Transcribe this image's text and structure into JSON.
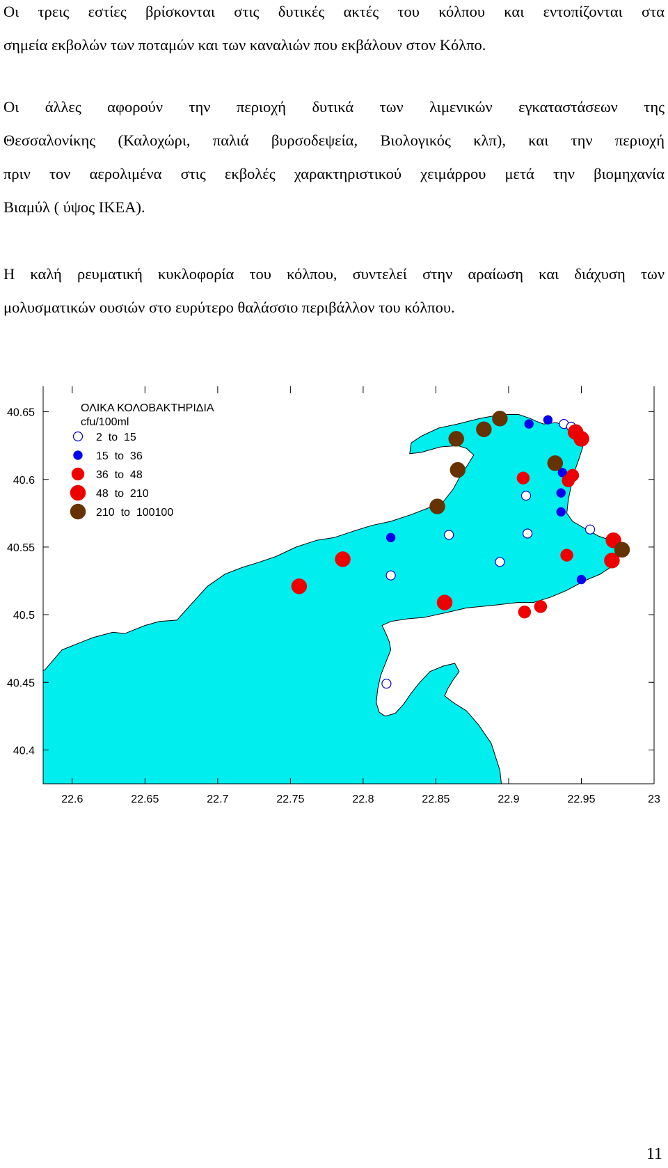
{
  "paragraphs": [
    {
      "lines": [
        "Οι τρεις εστίες βρίσκονται στις δυτικές ακτές του κόλπου και εντοπίζονται στα",
        "σημεία εκβολών των ποταμών και των καναλιών που εκβάλουν στον Κόλπο."
      ]
    },
    {
      "lines": [
        "Οι άλλες αφορούν την περιοχή δυτικά των λιμενικών εγκαταστάσεων της",
        "Θεσσαλονίκης (Καλοχώρι, παλιά βυρσοδεψεία, Βιολογικός κλπ), και την περιοχή",
        "πριν τον αερολιμένα στις εκβολές χαρακτηριστικού χειμάρρου μετά την βιομηχανία",
        "Βιαμύλ ( ύψος ΙΚΕΑ)."
      ]
    },
    {
      "lines": [
        "Η καλή ρευματική κυκλοφορία του κόλπου, συντελεί στην αραίωση και διάχυση των",
        "μολυσματικών ουσιών στο ευρύτερο θαλάσσιο περιβάλλον του κόλπου."
      ]
    }
  ],
  "chart_data": {
    "type": "scatter",
    "legend": {
      "title_line1": "ΟΛΙΚΑ ΚΟΛΟΒΑΚΤΗΡΙΔΙΑ",
      "title_line2": "cfu/100ml",
      "placement": "top-left",
      "classes": [
        {
          "label": "2  to  15",
          "color": "#ffffff",
          "stroke": "#0000cc",
          "size": "small"
        },
        {
          "label": "15  to  36",
          "color": "#0000ee",
          "stroke": "#0000ee",
          "size": "small"
        },
        {
          "label": "36  to  48",
          "color": "#ee0000",
          "stroke": "#ee0000",
          "size": "medium"
        },
        {
          "label": "48  to  210",
          "color": "#ee0000",
          "stroke": "#ee0000",
          "size": "large"
        },
        {
          "label": "210  to  100100",
          "color": "#663300",
          "stroke": "#663300",
          "size": "large"
        }
      ]
    },
    "x_ticks": [
      "22.6",
      "22.65",
      "22.7",
      "22.75",
      "22.8",
      "22.85",
      "22.9",
      "22.95",
      "23"
    ],
    "y_ticks": [
      "40.65",
      "40.6",
      "40.55",
      "40.5",
      "40.45",
      "40.4"
    ],
    "xlim": [
      22.58,
      23.0
    ],
    "ylim": [
      40.375,
      40.675
    ],
    "sea_color": "#00eeee",
    "coastline": [
      [
        22.581,
        40.459
      ],
      [
        22.593,
        40.474
      ],
      [
        22.614,
        40.483
      ],
      [
        22.628,
        40.487
      ],
      [
        22.636,
        40.486
      ],
      [
        22.65,
        40.492
      ],
      [
        22.66,
        40.495
      ],
      [
        22.672,
        40.496
      ],
      [
        22.682,
        40.508
      ],
      [
        22.693,
        40.521
      ],
      [
        22.705,
        40.53
      ],
      [
        22.717,
        40.535
      ],
      [
        22.729,
        40.539
      ],
      [
        22.74,
        40.543
      ],
      [
        22.754,
        40.55
      ],
      [
        22.768,
        40.555
      ],
      [
        22.78,
        40.557
      ],
      [
        22.794,
        40.562
      ],
      [
        22.806,
        40.566
      ],
      [
        22.819,
        40.569
      ],
      [
        22.833,
        40.574
      ],
      [
        22.845,
        40.579
      ],
      [
        22.854,
        40.582
      ],
      [
        22.862,
        40.593
      ],
      [
        22.866,
        40.601
      ],
      [
        22.872,
        40.611
      ],
      [
        22.876,
        40.618
      ],
      [
        22.871,
        40.623
      ],
      [
        22.865,
        40.625
      ],
      [
        22.853,
        40.624
      ],
      [
        22.84,
        40.62
      ],
      [
        22.832,
        40.619
      ],
      [
        22.833,
        40.627
      ],
      [
        22.84,
        40.632
      ],
      [
        22.852,
        40.638
      ],
      [
        22.865,
        40.641
      ],
      [
        22.88,
        40.645
      ],
      [
        22.895,
        40.648
      ],
      [
        22.907,
        40.648
      ],
      [
        22.915,
        40.645
      ],
      [
        22.919,
        40.643
      ],
      [
        22.924,
        40.641
      ],
      [
        22.933,
        40.642
      ],
      [
        22.943,
        40.637
      ],
      [
        22.95,
        40.632
      ],
      [
        22.951,
        40.624
      ],
      [
        22.948,
        40.614
      ],
      [
        22.945,
        40.605
      ],
      [
        22.943,
        40.595
      ],
      [
        22.941,
        40.585
      ],
      [
        22.94,
        40.575
      ],
      [
        22.944,
        40.569
      ],
      [
        22.952,
        40.564
      ],
      [
        22.962,
        40.558
      ],
      [
        22.973,
        40.554
      ],
      [
        22.978,
        40.55
      ],
      [
        22.976,
        40.543
      ],
      [
        22.97,
        40.535
      ],
      [
        22.963,
        40.53
      ],
      [
        22.952,
        40.525
      ],
      [
        22.94,
        40.518
      ],
      [
        22.929,
        40.513
      ],
      [
        22.917,
        40.509
      ],
      [
        22.906,
        40.509
      ],
      [
        22.89,
        40.507
      ],
      [
        22.871,
        40.505
      ],
      [
        22.855,
        40.501
      ],
      [
        22.842,
        40.498
      ],
      [
        22.831,
        40.497
      ],
      [
        22.819,
        40.495
      ],
      [
        22.813,
        40.492
      ],
      [
        22.816,
        40.485
      ],
      [
        22.818,
        40.48
      ],
      [
        22.819,
        40.474
      ],
      [
        22.816,
        40.466
      ],
      [
        22.812,
        40.455
      ],
      [
        22.81,
        40.445
      ],
      [
        22.809,
        40.435
      ],
      [
        22.811,
        40.428
      ],
      [
        22.815,
        40.425
      ],
      [
        22.822,
        40.427
      ],
      [
        22.828,
        40.434
      ],
      [
        22.833,
        40.442
      ],
      [
        22.839,
        40.45
      ],
      [
        22.846,
        40.458
      ],
      [
        22.855,
        40.462
      ],
      [
        22.863,
        40.464
      ],
      [
        22.866,
        40.458
      ],
      [
        22.862,
        40.452
      ],
      [
        22.858,
        40.445
      ],
      [
        22.856,
        40.44
      ],
      [
        22.862,
        40.435
      ],
      [
        22.871,
        40.429
      ],
      [
        22.879,
        40.419
      ],
      [
        22.888,
        40.405
      ],
      [
        22.894,
        40.385
      ],
      [
        22.895,
        40.375
      ],
      [
        22.58,
        40.375
      ],
      [
        22.58,
        40.459
      ]
    ],
    "points": [
      {
        "x": 22.816,
        "y": 40.449,
        "cls": 0
      },
      {
        "x": 22.819,
        "y": 40.529,
        "cls": 0
      },
      {
        "x": 22.859,
        "y": 40.559,
        "cls": 0
      },
      {
        "x": 22.894,
        "y": 40.539,
        "cls": 0
      },
      {
        "x": 22.912,
        "y": 40.588,
        "cls": 0
      },
      {
        "x": 22.913,
        "y": 40.56,
        "cls": 0
      },
      {
        "x": 22.938,
        "y": 40.641,
        "cls": 0
      },
      {
        "x": 22.943,
        "y": 40.639,
        "cls": 0
      },
      {
        "x": 22.956,
        "y": 40.563,
        "cls": 0
      },
      {
        "x": 22.819,
        "y": 40.557,
        "cls": 1
      },
      {
        "x": 22.914,
        "y": 40.641,
        "cls": 1
      },
      {
        "x": 22.927,
        "y": 40.644,
        "cls": 1
      },
      {
        "x": 22.937,
        "y": 40.605,
        "cls": 1
      },
      {
        "x": 22.936,
        "y": 40.59,
        "cls": 1
      },
      {
        "x": 22.936,
        "y": 40.576,
        "cls": 1
      },
      {
        "x": 22.95,
        "y": 40.526,
        "cls": 1
      },
      {
        "x": 22.911,
        "y": 40.502,
        "cls": 2
      },
      {
        "x": 22.922,
        "y": 40.506,
        "cls": 2
      },
      {
        "x": 22.91,
        "y": 40.601,
        "cls": 2
      },
      {
        "x": 22.941,
        "y": 40.599,
        "cls": 2
      },
      {
        "x": 22.944,
        "y": 40.603,
        "cls": 2
      },
      {
        "x": 22.94,
        "y": 40.544,
        "cls": 2
      },
      {
        "x": 22.756,
        "y": 40.521,
        "cls": 3
      },
      {
        "x": 22.786,
        "y": 40.541,
        "cls": 3
      },
      {
        "x": 22.856,
        "y": 40.509,
        "cls": 3
      },
      {
        "x": 22.946,
        "y": 40.635,
        "cls": 3
      },
      {
        "x": 22.95,
        "y": 40.63,
        "cls": 3
      },
      {
        "x": 22.972,
        "y": 40.555,
        "cls": 3
      },
      {
        "x": 22.971,
        "y": 40.54,
        "cls": 3
      },
      {
        "x": 22.864,
        "y": 40.63,
        "cls": 4
      },
      {
        "x": 22.883,
        "y": 40.637,
        "cls": 4
      },
      {
        "x": 22.894,
        "y": 40.645,
        "cls": 4
      },
      {
        "x": 22.865,
        "y": 40.607,
        "cls": 4
      },
      {
        "x": 22.851,
        "y": 40.58,
        "cls": 4
      },
      {
        "x": 22.932,
        "y": 40.612,
        "cls": 4
      },
      {
        "x": 22.978,
        "y": 40.548,
        "cls": 4
      }
    ]
  },
  "page_number": "11"
}
